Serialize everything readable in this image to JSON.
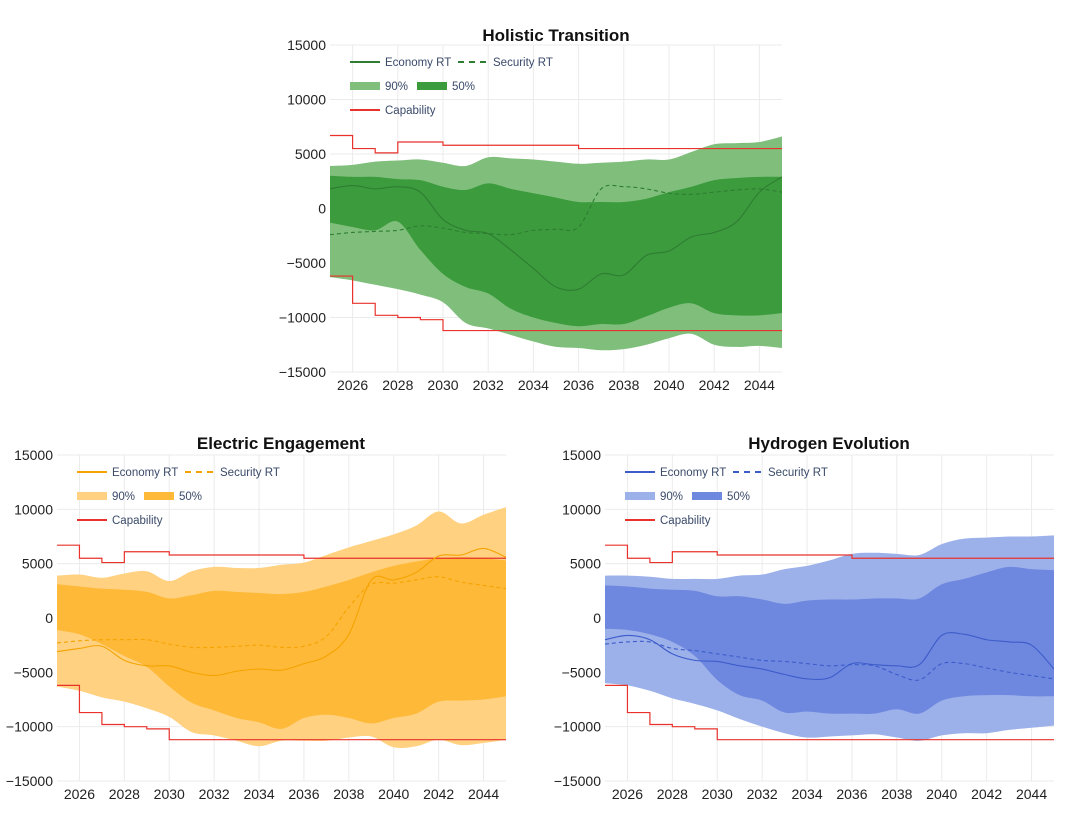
{
  "chart_data": [
    {
      "type": "area",
      "title": "Holistic Transition",
      "xlabel": "",
      "ylabel": "",
      "xlim": [
        2025,
        2045
      ],
      "ylim": [
        -15000,
        15000
      ],
      "xticks": [
        2026,
        2028,
        2030,
        2032,
        2034,
        2036,
        2038,
        2040,
        2042,
        2044
      ],
      "xtick_labels": [
        "2026",
        "2028",
        "2030",
        "2032",
        "2034",
        "2036",
        "2038",
        "2040",
        "2042",
        "2044"
      ],
      "yticks": [
        -15000,
        -10000,
        -5000,
        0,
        5000,
        10000,
        15000
      ],
      "ytick_labels": [
        "−15000",
        "−10000",
        "−5000",
        "0",
        "5000",
        "10000",
        "15000"
      ],
      "grid": true,
      "legend_position": "top-left",
      "colors": {
        "line": "#2e7d32",
        "band90": "#7fbf7b",
        "band50": "#3c9b3c",
        "capability": "#e8322b"
      },
      "legend": {
        "economy": "Economy RT",
        "security": "Security RT",
        "band90": "90%",
        "band50": "50%",
        "capability": "Capability"
      },
      "x": [
        2025,
        2026,
        2027,
        2028,
        2029,
        2030,
        2031,
        2032,
        2033,
        2034,
        2035,
        2036,
        2037,
        2038,
        2039,
        2040,
        2041,
        2042,
        2043,
        2044,
        2045
      ],
      "series": [
        {
          "name": "Economy RT",
          "style": "solid",
          "values": [
            1800,
            2100,
            1800,
            2000,
            1500,
            -1000,
            -2000,
            -2300,
            -3800,
            -5500,
            -7200,
            -7400,
            -6000,
            -6100,
            -4300,
            -3900,
            -2600,
            -2200,
            -1200,
            1500,
            2900
          ]
        },
        {
          "name": "Security RT",
          "style": "dashed",
          "values": [
            -2400,
            -2200,
            -2100,
            -2000,
            -1600,
            -1800,
            -2200,
            -2300,
            -2400,
            -2000,
            -1900,
            -1700,
            1800,
            2000,
            1800,
            1400,
            1300,
            1500,
            1700,
            1800,
            1500
          ]
        },
        {
          "name": "90%",
          "kind": "band",
          "upper": [
            3900,
            4000,
            4300,
            4400,
            4500,
            4200,
            3900,
            4700,
            4600,
            4500,
            4300,
            4100,
            4200,
            4300,
            4500,
            4500,
            5200,
            5900,
            6000,
            6100,
            6600
          ],
          "lower": [
            -6300,
            -6600,
            -7000,
            -7400,
            -7900,
            -8600,
            -10500,
            -11000,
            -11600,
            -12200,
            -12700,
            -12800,
            -13000,
            -12900,
            -12500,
            -11900,
            -11500,
            -12500,
            -12700,
            -12600,
            -12800
          ]
        },
        {
          "name": "50%",
          "kind": "band",
          "upper": [
            3000,
            2900,
            2900,
            2700,
            2600,
            2000,
            1700,
            2300,
            1800,
            1400,
            1000,
            600,
            600,
            600,
            900,
            1500,
            2000,
            2600,
            2800,
            2900,
            2900
          ],
          "lower": [
            -1300,
            -1700,
            -2000,
            -1200,
            -3800,
            -6000,
            -7200,
            -7800,
            -9200,
            -10000,
            -10500,
            -10800,
            -10600,
            -10600,
            -9900,
            -9100,
            -8700,
            -9600,
            -9800,
            -9800,
            -9600
          ]
        }
      ],
      "capability": {
        "upper": [
          [
            2025,
            6700
          ],
          [
            2026,
            5500
          ],
          [
            2027,
            5100
          ],
          [
            2028,
            6100
          ],
          [
            2030,
            5800
          ],
          [
            2036,
            5500
          ],
          [
            2045,
            5500
          ]
        ],
        "lower": [
          [
            2025,
            -6200
          ],
          [
            2026,
            -8700
          ],
          [
            2027,
            -9800
          ],
          [
            2028,
            -10000
          ],
          [
            2029,
            -10200
          ],
          [
            2030,
            -11200
          ],
          [
            2045,
            -11200
          ]
        ]
      }
    },
    {
      "type": "area",
      "title": "Electric Engagement",
      "xlabel": "",
      "ylabel": "",
      "xlim": [
        2025,
        2045
      ],
      "ylim": [
        -15000,
        15000
      ],
      "xticks": [
        2026,
        2028,
        2030,
        2032,
        2034,
        2036,
        2038,
        2040,
        2042,
        2044
      ],
      "xtick_labels": [
        "2026",
        "2028",
        "2030",
        "2032",
        "2034",
        "2036",
        "2038",
        "2040",
        "2042",
        "2044"
      ],
      "yticks": [
        -15000,
        -10000,
        -5000,
        0,
        5000,
        10000,
        15000
      ],
      "ytick_labels": [
        "−15000",
        "−10000",
        "−5000",
        "0",
        "5000",
        "10000",
        "15000"
      ],
      "grid": true,
      "legend_position": "top-left",
      "colors": {
        "line": "#f4a300",
        "band90": "#ffd180",
        "band50": "#ffb938",
        "capability": "#e8322b"
      },
      "legend": {
        "economy": "Economy RT",
        "security": "Security RT",
        "band90": "90%",
        "band50": "50%",
        "capability": "Capability"
      },
      "x": [
        2025,
        2026,
        2027,
        2028,
        2029,
        2030,
        2031,
        2032,
        2033,
        2034,
        2035,
        2036,
        2037,
        2038,
        2039,
        2040,
        2041,
        2042,
        2043,
        2044,
        2045
      ],
      "series": [
        {
          "name": "Economy RT",
          "style": "solid",
          "values": [
            -3100,
            -2800,
            -2600,
            -3900,
            -4400,
            -4400,
            -5000,
            -5300,
            -4900,
            -4700,
            -4800,
            -4200,
            -3500,
            -1500,
            3500,
            3500,
            4200,
            5700,
            5800,
            6400,
            5600
          ]
        },
        {
          "name": "Security RT",
          "style": "dashed",
          "values": [
            -2300,
            -2100,
            -2000,
            -2000,
            -2000,
            -2400,
            -2700,
            -2700,
            -2600,
            -2500,
            -2700,
            -2600,
            -1700,
            1000,
            3100,
            3200,
            3500,
            3800,
            3300,
            3000,
            2700
          ]
        },
        {
          "name": "90%",
          "kind": "band",
          "upper": [
            3900,
            4000,
            3700,
            4100,
            4300,
            3400,
            4300,
            4700,
            4600,
            4600,
            4900,
            5100,
            5800,
            6500,
            7100,
            7700,
            8500,
            9800,
            8700,
            9500,
            10200
          ],
          "lower": [
            -6300,
            -6700,
            -7300,
            -7700,
            -8300,
            -9100,
            -10500,
            -10800,
            -11300,
            -11800,
            -11300,
            -11300,
            -11300,
            -11000,
            -10900,
            -11900,
            -11800,
            -11200,
            -11700,
            -11500,
            -11200
          ]
        },
        {
          "name": "50%",
          "kind": "band",
          "upper": [
            3100,
            2900,
            2700,
            2600,
            2400,
            1800,
            2100,
            2500,
            2400,
            2300,
            2200,
            2400,
            2900,
            3500,
            4200,
            4800,
            5200,
            5500,
            5600,
            5500,
            5300
          ],
          "lower": [
            -1100,
            -1500,
            -2400,
            -3500,
            -4500,
            -6300,
            -7800,
            -8500,
            -9200,
            -9600,
            -10200,
            -9200,
            -8900,
            -9200,
            -9700,
            -9200,
            -8800,
            -7700,
            -7600,
            -7500,
            -7200
          ]
        }
      ],
      "capability": {
        "upper": [
          [
            2025,
            6700
          ],
          [
            2026,
            5500
          ],
          [
            2027,
            5100
          ],
          [
            2028,
            6100
          ],
          [
            2030,
            5800
          ],
          [
            2036,
            5500
          ],
          [
            2045,
            5500
          ]
        ],
        "lower": [
          [
            2025,
            -6200
          ],
          [
            2026,
            -8700
          ],
          [
            2027,
            -9800
          ],
          [
            2028,
            -10000
          ],
          [
            2029,
            -10200
          ],
          [
            2030,
            -11200
          ],
          [
            2045,
            -11200
          ]
        ]
      }
    },
    {
      "type": "area",
      "title": "Hydrogen Evolution",
      "xlabel": "",
      "ylabel": "",
      "xlim": [
        2025,
        2045
      ],
      "ylim": [
        -15000,
        15000
      ],
      "xticks": [
        2026,
        2028,
        2030,
        2032,
        2034,
        2036,
        2038,
        2040,
        2042,
        2044
      ],
      "xtick_labels": [
        "2026",
        "2028",
        "2030",
        "2032",
        "2034",
        "2036",
        "2038",
        "2040",
        "2042",
        "2044"
      ],
      "yticks": [
        -15000,
        -10000,
        -5000,
        0,
        5000,
        10000,
        15000
      ],
      "ytick_labels": [
        "−15000",
        "−10000",
        "−5000",
        "0",
        "5000",
        "10000",
        "15000"
      ],
      "grid": true,
      "legend_position": "top-left",
      "colors": {
        "line": "#3d5cc9",
        "band90": "#9cb0ea",
        "band50": "#6e88e0",
        "capability": "#e8322b"
      },
      "legend": {
        "economy": "Economy RT",
        "security": "Security RT",
        "band90": "90%",
        "band50": "50%",
        "capability": "Capability"
      },
      "x": [
        2025,
        2026,
        2027,
        2028,
        2029,
        2030,
        2031,
        2032,
        2033,
        2034,
        2035,
        2036,
        2037,
        2038,
        2039,
        2040,
        2041,
        2042,
        2043,
        2044,
        2045
      ],
      "series": [
        {
          "name": "Economy RT",
          "style": "solid",
          "values": [
            -2000,
            -1600,
            -2000,
            -3300,
            -3900,
            -4000,
            -4400,
            -4700,
            -5200,
            -5600,
            -5500,
            -4200,
            -4300,
            -4400,
            -4300,
            -1600,
            -1500,
            -2000,
            -2200,
            -2500,
            -4700
          ]
        },
        {
          "name": "Security RT",
          "style": "dashed",
          "values": [
            -2400,
            -2200,
            -2200,
            -2800,
            -3000,
            -3300,
            -3600,
            -3900,
            -4000,
            -4200,
            -4400,
            -4300,
            -4400,
            -5200,
            -5700,
            -4200,
            -4200,
            -4600,
            -5000,
            -5300,
            -5600
          ]
        },
        {
          "name": "90%",
          "kind": "band",
          "upper": [
            3900,
            3900,
            3800,
            3600,
            3600,
            3600,
            3900,
            4000,
            4500,
            4800,
            5300,
            5900,
            6000,
            5900,
            5800,
            6800,
            7300,
            7400,
            7500,
            7500,
            7600
          ],
          "lower": [
            -6000,
            -6200,
            -6700,
            -7400,
            -7900,
            -8500,
            -9300,
            -10000,
            -10600,
            -11000,
            -10900,
            -10800,
            -10700,
            -11000,
            -11300,
            -10800,
            -10600,
            -10600,
            -10300,
            -10100,
            -9900
          ]
        },
        {
          "name": "50%",
          "kind": "band",
          "upper": [
            3000,
            2900,
            2700,
            2600,
            2500,
            2000,
            2000,
            1700,
            1300,
            1600,
            1700,
            1700,
            1800,
            1800,
            1800,
            3100,
            3600,
            4200,
            4700,
            4500,
            4400
          ],
          "lower": [
            -1000,
            -1100,
            -1500,
            -2200,
            -3500,
            -5700,
            -7100,
            -7600,
            -8700,
            -8600,
            -8800,
            -8800,
            -8800,
            -8400,
            -8800,
            -7600,
            -7200,
            -7100,
            -7100,
            -7200,
            -7200
          ]
        }
      ],
      "capability": {
        "upper": [
          [
            2025,
            6700
          ],
          [
            2026,
            5500
          ],
          [
            2027,
            5100
          ],
          [
            2028,
            6100
          ],
          [
            2030,
            5800
          ],
          [
            2036,
            5500
          ],
          [
            2045,
            5500
          ]
        ],
        "lower": [
          [
            2025,
            -6200
          ],
          [
            2026,
            -8700
          ],
          [
            2027,
            -9800
          ],
          [
            2028,
            -10000
          ],
          [
            2029,
            -10200
          ],
          [
            2030,
            -11200
          ],
          [
            2045,
            -11200
          ]
        ]
      }
    }
  ]
}
